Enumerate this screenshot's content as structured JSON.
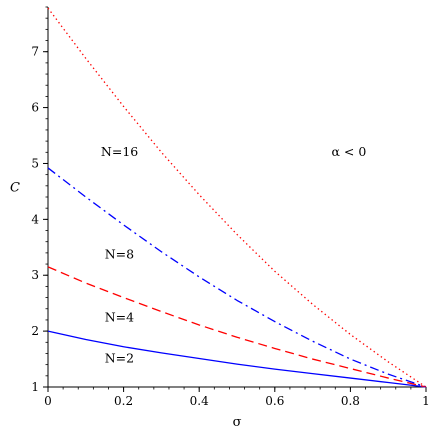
{
  "chart_data": {
    "type": "line",
    "title": "",
    "xlabel": "σ",
    "ylabel": "C",
    "xlim": [
      0,
      1
    ],
    "ylim": [
      1,
      7.8
    ],
    "xticks": [
      0,
      0.2,
      0.4,
      0.6,
      0.8,
      1
    ],
    "xtick_labels": [
      "0",
      "0.2",
      "0.4",
      "0.6",
      "0.8",
      "1"
    ],
    "yticks": [
      1,
      2,
      3,
      4,
      5,
      6,
      7
    ],
    "ytick_labels": [
      "1",
      "2",
      "3",
      "4",
      "5",
      "6",
      "7"
    ],
    "grid": false,
    "legend": "none",
    "annotations": [
      {
        "text": "α < 0",
        "x": 0.75,
        "y": 5.13
      },
      {
        "text": "N=16",
        "x": 0.14,
        "y": 5.13
      },
      {
        "text": "N=8",
        "x": 0.15,
        "y": 3.3
      },
      {
        "text": "N=4",
        "x": 0.15,
        "y": 2.17
      },
      {
        "text": "N=2",
        "x": 0.15,
        "y": 1.44
      }
    ],
    "series": [
      {
        "label_text": "N=2",
        "color": "#0000ff",
        "style": "solid",
        "x": [
          0,
          0.1,
          0.2,
          0.3,
          0.4,
          0.5,
          0.6,
          0.7,
          0.8,
          0.9,
          1
        ],
        "y": [
          2.0,
          1.85,
          1.72,
          1.61,
          1.51,
          1.41,
          1.32,
          1.24,
          1.16,
          1.08,
          1.0
        ]
      },
      {
        "label_text": "N=4",
        "color": "#ff0000",
        "style": "dashed",
        "x": [
          0,
          0.1,
          0.2,
          0.3,
          0.4,
          0.5,
          0.6,
          0.7,
          0.8,
          0.9,
          1
        ],
        "y": [
          3.15,
          2.86,
          2.6,
          2.35,
          2.11,
          1.89,
          1.69,
          1.5,
          1.33,
          1.16,
          1.0
        ]
      },
      {
        "label_text": "N=8",
        "color": "#0000ff",
        "style": "dashdot",
        "x": [
          0,
          0.1,
          0.2,
          0.3,
          0.4,
          0.5,
          0.6,
          0.7,
          0.8,
          0.9,
          1
        ],
        "y": [
          4.92,
          4.4,
          3.9,
          3.42,
          2.97,
          2.55,
          2.17,
          1.82,
          1.5,
          1.23,
          1.0
        ]
      },
      {
        "label_text": "N=16",
        "color": "#ff0000",
        "style": "dotted",
        "x": [
          0,
          0.1,
          0.2,
          0.3,
          0.4,
          0.5,
          0.6,
          0.7,
          0.8,
          0.9,
          1
        ],
        "y": [
          7.78,
          6.88,
          6.02,
          5.2,
          4.44,
          3.73,
          3.07,
          2.48,
          1.94,
          1.45,
          1.0
        ]
      }
    ]
  }
}
